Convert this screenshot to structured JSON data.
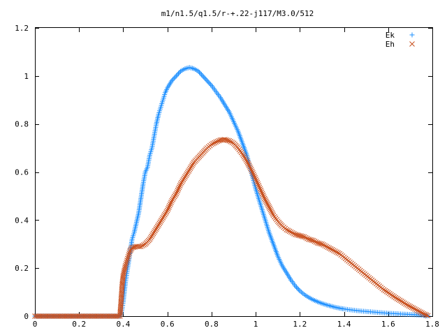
{
  "chart_data": {
    "type": "scatter",
    "title": "m1/n1.5/q1.5/r-+.22-j117/M3.0/512",
    "xlabel": "",
    "ylabel": "",
    "xlim": [
      0,
      1.8
    ],
    "ylim": [
      0,
      1.2
    ],
    "x_ticks": [
      0,
      0.2,
      0.4,
      0.6,
      0.8,
      1,
      1.2,
      1.4,
      1.6,
      1.8
    ],
    "x_tick_labels": [
      "0",
      "0.2",
      "0.4",
      "0.6",
      "0.8",
      "1",
      "1.2",
      "1.4",
      "1.6",
      "1.8"
    ],
    "y_ticks": [
      0,
      0.2,
      0.4,
      0.6,
      0.8,
      1,
      1.2
    ],
    "y_tick_labels": [
      "0",
      "0.2",
      "0.4",
      "0.6",
      "0.8",
      "1",
      "1.2"
    ],
    "grid": false,
    "legend_position": "top-right",
    "series": [
      {
        "name": "Ek",
        "marker": "plus",
        "color": "#1e90ff",
        "points": [
          [
            0,
            0
          ],
          [
            0.05,
            0
          ],
          [
            0.1,
            0
          ],
          [
            0.15,
            0
          ],
          [
            0.2,
            0
          ],
          [
            0.25,
            0
          ],
          [
            0.3,
            0
          ],
          [
            0.35,
            0
          ],
          [
            0.385,
            0
          ],
          [
            0.39,
            0.01
          ],
          [
            0.395,
            0.03
          ],
          [
            0.4,
            0.06
          ],
          [
            0.405,
            0.1
          ],
          [
            0.41,
            0.14
          ],
          [
            0.415,
            0.17
          ],
          [
            0.42,
            0.2
          ],
          [
            0.43,
            0.26
          ],
          [
            0.44,
            0.32
          ],
          [
            0.45,
            0.35
          ],
          [
            0.46,
            0.39
          ],
          [
            0.47,
            0.43
          ],
          [
            0.48,
            0.49
          ],
          [
            0.49,
            0.55
          ],
          [
            0.5,
            0.6
          ],
          [
            0.51,
            0.62
          ],
          [
            0.52,
            0.67
          ],
          [
            0.53,
            0.7
          ],
          [
            0.54,
            0.75
          ],
          [
            0.55,
            0.8
          ],
          [
            0.56,
            0.84
          ],
          [
            0.57,
            0.87
          ],
          [
            0.58,
            0.9
          ],
          [
            0.59,
            0.93
          ],
          [
            0.6,
            0.95
          ],
          [
            0.62,
            0.98
          ],
          [
            0.64,
            1.0
          ],
          [
            0.66,
            1.02
          ],
          [
            0.68,
            1.03
          ],
          [
            0.7,
            1.035
          ],
          [
            0.72,
            1.03
          ],
          [
            0.74,
            1.02
          ],
          [
            0.76,
            1.0
          ],
          [
            0.78,
            0.98
          ],
          [
            0.8,
            0.96
          ],
          [
            0.82,
            0.935
          ],
          [
            0.84,
            0.91
          ],
          [
            0.86,
            0.88
          ],
          [
            0.88,
            0.85
          ],
          [
            0.9,
            0.81
          ],
          [
            0.92,
            0.77
          ],
          [
            0.94,
            0.72
          ],
          [
            0.96,
            0.67
          ],
          [
            0.98,
            0.6
          ],
          [
            1.0,
            0.53
          ],
          [
            1.02,
            0.47
          ],
          [
            1.04,
            0.41
          ],
          [
            1.06,
            0.35
          ],
          [
            1.08,
            0.3
          ],
          [
            1.1,
            0.25
          ],
          [
            1.12,
            0.21
          ],
          [
            1.14,
            0.18
          ],
          [
            1.16,
            0.15
          ],
          [
            1.18,
            0.125
          ],
          [
            1.2,
            0.105
          ],
          [
            1.22,
            0.09
          ],
          [
            1.24,
            0.078
          ],
          [
            1.26,
            0.068
          ],
          [
            1.28,
            0.06
          ],
          [
            1.3,
            0.053
          ],
          [
            1.32,
            0.047
          ],
          [
            1.34,
            0.042
          ],
          [
            1.36,
            0.037
          ],
          [
            1.38,
            0.033
          ],
          [
            1.4,
            0.03
          ],
          [
            1.44,
            0.025
          ],
          [
            1.48,
            0.021
          ],
          [
            1.52,
            0.018
          ],
          [
            1.56,
            0.015
          ],
          [
            1.6,
            0.012
          ],
          [
            1.64,
            0.01
          ],
          [
            1.68,
            0.008
          ],
          [
            1.72,
            0.006
          ],
          [
            1.76,
            0.003
          ],
          [
            1.78,
            0.001
          ]
        ]
      },
      {
        "name": "Eh",
        "marker": "cross",
        "color": "#c8501e",
        "points": [
          [
            0,
            0
          ],
          [
            0.05,
            0
          ],
          [
            0.1,
            0
          ],
          [
            0.15,
            0
          ],
          [
            0.2,
            0
          ],
          [
            0.25,
            0
          ],
          [
            0.3,
            0
          ],
          [
            0.35,
            0
          ],
          [
            0.385,
            0
          ],
          [
            0.39,
            0.06
          ],
          [
            0.395,
            0.13
          ],
          [
            0.4,
            0.17
          ],
          [
            0.41,
            0.21
          ],
          [
            0.42,
            0.24
          ],
          [
            0.43,
            0.27
          ],
          [
            0.44,
            0.285
          ],
          [
            0.46,
            0.29
          ],
          [
            0.48,
            0.29
          ],
          [
            0.5,
            0.3
          ],
          [
            0.52,
            0.32
          ],
          [
            0.54,
            0.35
          ],
          [
            0.56,
            0.38
          ],
          [
            0.58,
            0.41
          ],
          [
            0.6,
            0.44
          ],
          [
            0.62,
            0.48
          ],
          [
            0.64,
            0.51
          ],
          [
            0.66,
            0.55
          ],
          [
            0.68,
            0.58
          ],
          [
            0.7,
            0.61
          ],
          [
            0.72,
            0.64
          ],
          [
            0.74,
            0.66
          ],
          [
            0.76,
            0.68
          ],
          [
            0.78,
            0.7
          ],
          [
            0.8,
            0.715
          ],
          [
            0.82,
            0.725
          ],
          [
            0.84,
            0.733
          ],
          [
            0.86,
            0.735
          ],
          [
            0.88,
            0.73
          ],
          [
            0.9,
            0.72
          ],
          [
            0.92,
            0.7
          ],
          [
            0.94,
            0.675
          ],
          [
            0.96,
            0.645
          ],
          [
            0.98,
            0.61
          ],
          [
            1.0,
            0.57
          ],
          [
            1.02,
            0.53
          ],
          [
            1.04,
            0.49
          ],
          [
            1.06,
            0.455
          ],
          [
            1.08,
            0.42
          ],
          [
            1.1,
            0.395
          ],
          [
            1.12,
            0.375
          ],
          [
            1.14,
            0.36
          ],
          [
            1.16,
            0.35
          ],
          [
            1.18,
            0.34
          ],
          [
            1.2,
            0.335
          ],
          [
            1.22,
            0.33
          ],
          [
            1.24,
            0.32
          ],
          [
            1.26,
            0.315
          ],
          [
            1.28,
            0.305
          ],
          [
            1.3,
            0.3
          ],
          [
            1.32,
            0.29
          ],
          [
            1.34,
            0.28
          ],
          [
            1.36,
            0.27
          ],
          [
            1.38,
            0.26
          ],
          [
            1.4,
            0.245
          ],
          [
            1.42,
            0.23
          ],
          [
            1.44,
            0.215
          ],
          [
            1.46,
            0.2
          ],
          [
            1.48,
            0.185
          ],
          [
            1.5,
            0.17
          ],
          [
            1.52,
            0.155
          ],
          [
            1.54,
            0.14
          ],
          [
            1.56,
            0.125
          ],
          [
            1.58,
            0.11
          ],
          [
            1.6,
            0.098
          ],
          [
            1.62,
            0.085
          ],
          [
            1.64,
            0.073
          ],
          [
            1.66,
            0.062
          ],
          [
            1.68,
            0.05
          ],
          [
            1.7,
            0.04
          ],
          [
            1.72,
            0.03
          ],
          [
            1.74,
            0.02
          ],
          [
            1.76,
            0.01
          ],
          [
            1.78,
            0.002
          ]
        ]
      }
    ]
  }
}
